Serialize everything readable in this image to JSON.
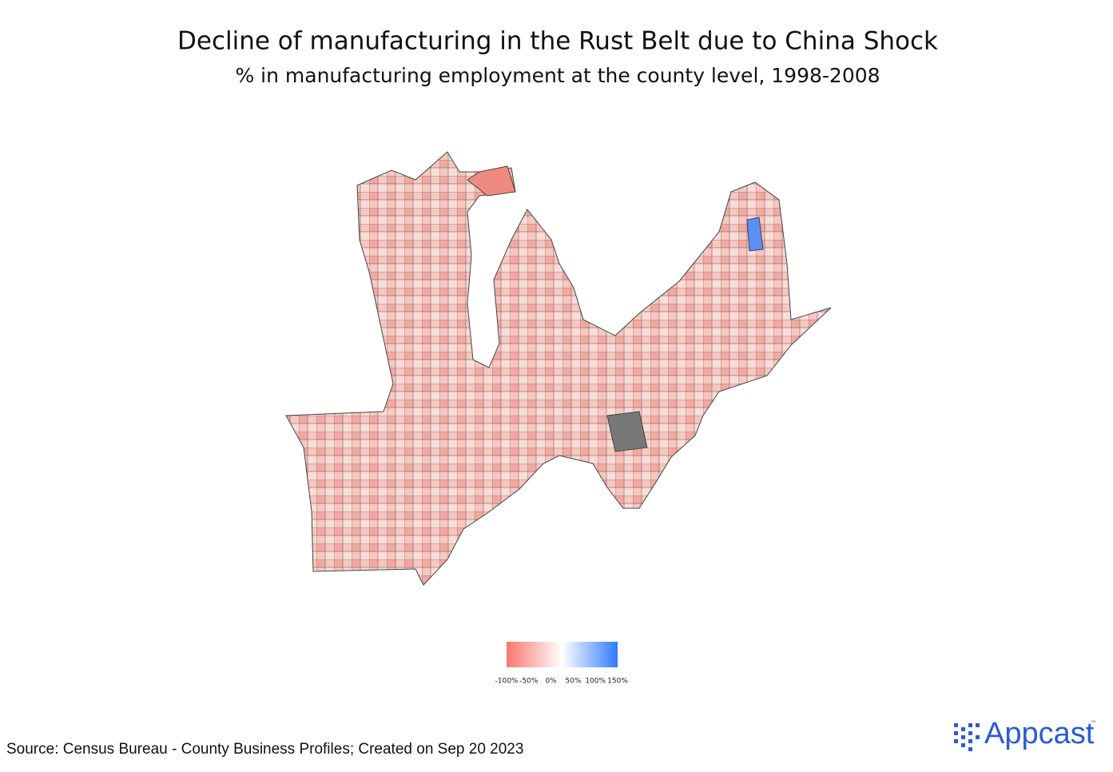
{
  "header": {
    "title": "Decline of manufacturing in the Rust Belt due to China Shock",
    "subtitle": "% in manufacturing employment at the county level, 1998-2008"
  },
  "map": {
    "type": "choropleth",
    "legend": {
      "range": [
        -100,
        150
      ],
      "colors": [
        "#f8766d",
        "#ffffff",
        "#2f7bff"
      ],
      "ticks": [
        {
          "value": -100,
          "label": "-100%"
        },
        {
          "value": -50,
          "label": "-50%"
        },
        {
          "value": 0,
          "label": "0%"
        },
        {
          "value": 50,
          "label": "50%"
        },
        {
          "value": 100,
          "label": "100%"
        },
        {
          "value": 150,
          "label": "150%"
        }
      ]
    }
  },
  "footer": {
    "source": "Source: Census Bureau - County Business Profiles; Created on Sep 20 2023",
    "logo": "Appcast",
    "logo_mark": "™"
  }
}
